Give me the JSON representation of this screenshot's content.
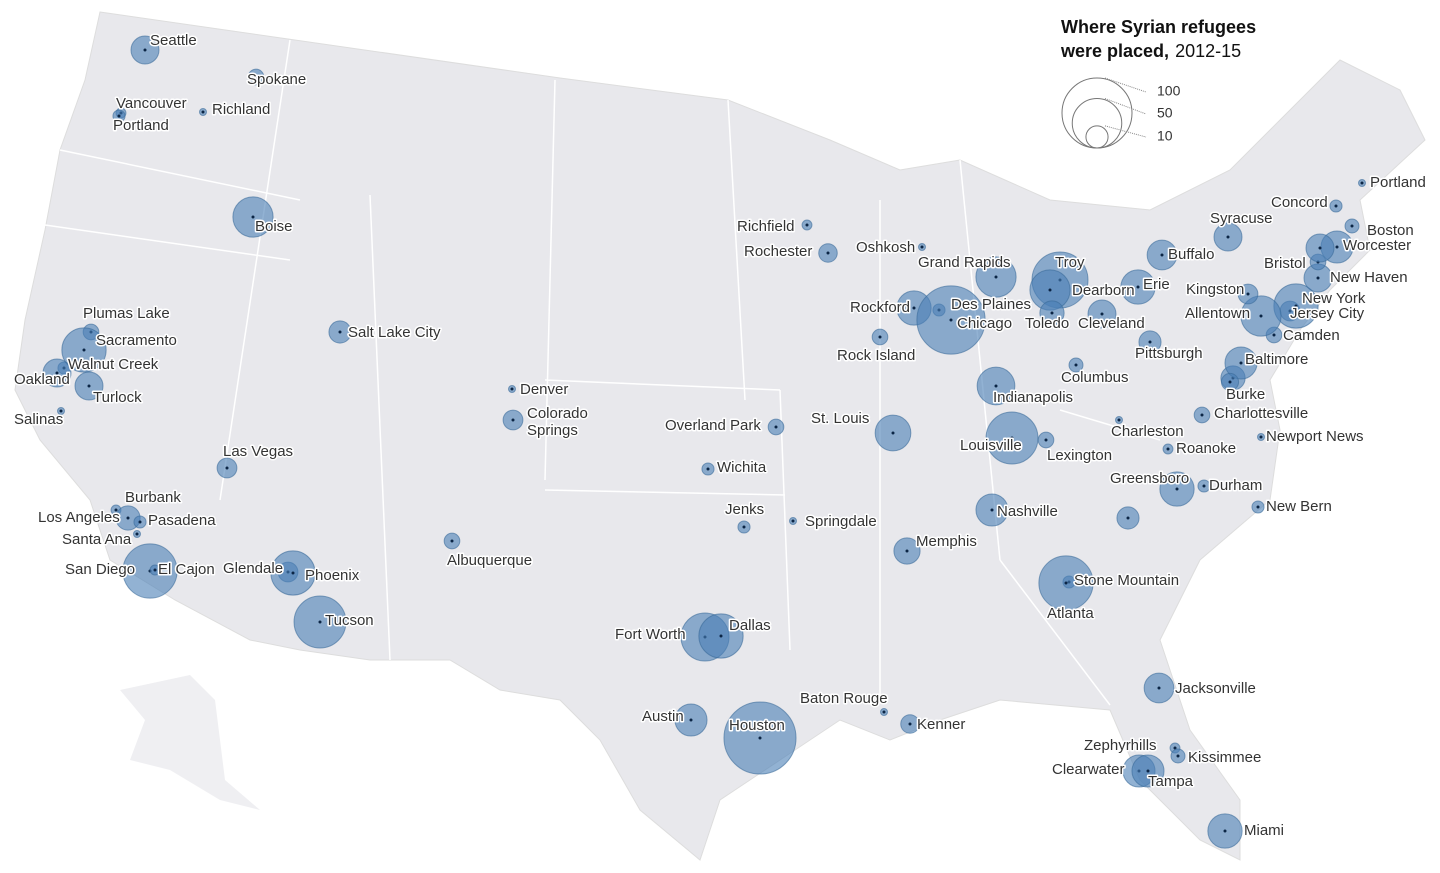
{
  "chart_data": {
    "type": "bubble-map",
    "title": "Where Syrian refugees were placed,",
    "period": "2012-15",
    "legend_sizes": [
      100,
      50,
      10
    ],
    "color": "#4a7fb5",
    "categories": [
      "Seattle",
      "Spokane",
      "Vancouver",
      "Portland",
      "Richland",
      "Boise",
      "Plumas Lake",
      "Sacramento",
      "Walnut Creek",
      "Oakland",
      "Turlock",
      "Salinas",
      "Las Vegas",
      "Burbank",
      "Los Angeles",
      "Pasadena",
      "Santa Ana",
      "San Diego",
      "El Cajon",
      "Glendale",
      "Phoenix",
      "Tucson",
      "Salt Lake City",
      "Denver",
      "Colorado Springs",
      "Albuquerque",
      "Richfield",
      "Rochester",
      "Oshkosh",
      "Grand Rapids",
      "Rockford",
      "Des Plaines",
      "Chicago",
      "Rock Island",
      "Troy",
      "Dearborn",
      "Toledo",
      "Erie",
      "Cleveland",
      "Columbus",
      "Pittsburgh",
      "Indianapolis",
      "Louisville",
      "Lexington",
      "Charleston",
      "St. Louis",
      "Overland Park",
      "Wichita",
      "Jenks",
      "Springdale",
      "Memphis",
      "Nashville",
      "Stone Mountain",
      "Atlanta",
      "Fort Worth",
      "Dallas",
      "Austin",
      "Houston",
      "Baton Rouge",
      "Kenner",
      "Jacksonville",
      "Zephyrhills",
      "Kissimmee",
      "Clearwater",
      "Tampa",
      "Miami",
      "Greensboro",
      "Durham",
      "New Bern",
      "Newport News",
      "Roanoke",
      "Charlottesville",
      "Burke",
      "Baltimore",
      "Camden",
      "Jersey City",
      "New York",
      "Allentown",
      "Kingston",
      "New Haven",
      "Bristol",
      "Worcester",
      "Boston",
      "Concord",
      "Portland",
      "Syracuse",
      "Buffalo",
      null,
      null,
      null
    ],
    "values": [
      16,
      5,
      2,
      3,
      1,
      33,
      5,
      40,
      3,
      16,
      16,
      1,
      8,
      2,
      12,
      3,
      1,
      60,
      2,
      8,
      40,
      55,
      10,
      1,
      8,
      5,
      2,
      7,
      1,
      33,
      24,
      3,
      95,
      5,
      64,
      33,
      12,
      24,
      16,
      4,
      10,
      29,
      55,
      5,
      1,
      26,
      5,
      3,
      3,
      1,
      14,
      21,
      3,
      60,
      47,
      40,
      21,
      106,
      1,
      7,
      18,
      2,
      4,
      21,
      21,
      24,
      24,
      3,
      3,
      1,
      2,
      5,
      12,
      21,
      5,
      8,
      40,
      33,
      8,
      16,
      5,
      21,
      4,
      3,
      1,
      16,
      18,
      16,
      10,
      6
    ]
  }
}
